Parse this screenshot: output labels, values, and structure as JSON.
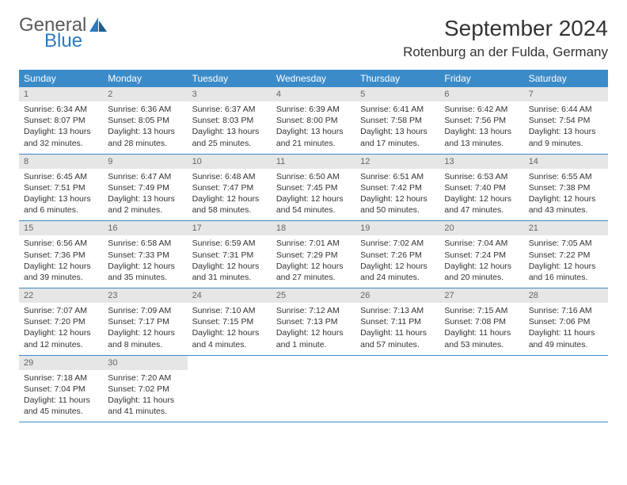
{
  "brand": {
    "line1": "General",
    "line2": "Blue",
    "accent": "#2b7bbf",
    "text_color": "#5a5a5a"
  },
  "title": "September 2024",
  "location": "Rotenburg an der Fulda, Germany",
  "colors": {
    "header_bg": "#3b8bc9",
    "header_fg": "#ffffff",
    "daynum_bg": "#e6e6e6",
    "rule": "#3b8bc9"
  },
  "day_names": [
    "Sunday",
    "Monday",
    "Tuesday",
    "Wednesday",
    "Thursday",
    "Friday",
    "Saturday"
  ],
  "weeks": [
    [
      {
        "n": "1",
        "sunrise": "6:34 AM",
        "sunset": "8:07 PM",
        "daylight": "13 hours and 32 minutes."
      },
      {
        "n": "2",
        "sunrise": "6:36 AM",
        "sunset": "8:05 PM",
        "daylight": "13 hours and 28 minutes."
      },
      {
        "n": "3",
        "sunrise": "6:37 AM",
        "sunset": "8:03 PM",
        "daylight": "13 hours and 25 minutes."
      },
      {
        "n": "4",
        "sunrise": "6:39 AM",
        "sunset": "8:00 PM",
        "daylight": "13 hours and 21 minutes."
      },
      {
        "n": "5",
        "sunrise": "6:41 AM",
        "sunset": "7:58 PM",
        "daylight": "13 hours and 17 minutes."
      },
      {
        "n": "6",
        "sunrise": "6:42 AM",
        "sunset": "7:56 PM",
        "daylight": "13 hours and 13 minutes."
      },
      {
        "n": "7",
        "sunrise": "6:44 AM",
        "sunset": "7:54 PM",
        "daylight": "13 hours and 9 minutes."
      }
    ],
    [
      {
        "n": "8",
        "sunrise": "6:45 AM",
        "sunset": "7:51 PM",
        "daylight": "13 hours and 6 minutes."
      },
      {
        "n": "9",
        "sunrise": "6:47 AM",
        "sunset": "7:49 PM",
        "daylight": "13 hours and 2 minutes."
      },
      {
        "n": "10",
        "sunrise": "6:48 AM",
        "sunset": "7:47 PM",
        "daylight": "12 hours and 58 minutes."
      },
      {
        "n": "11",
        "sunrise": "6:50 AM",
        "sunset": "7:45 PM",
        "daylight": "12 hours and 54 minutes."
      },
      {
        "n": "12",
        "sunrise": "6:51 AM",
        "sunset": "7:42 PM",
        "daylight": "12 hours and 50 minutes."
      },
      {
        "n": "13",
        "sunrise": "6:53 AM",
        "sunset": "7:40 PM",
        "daylight": "12 hours and 47 minutes."
      },
      {
        "n": "14",
        "sunrise": "6:55 AM",
        "sunset": "7:38 PM",
        "daylight": "12 hours and 43 minutes."
      }
    ],
    [
      {
        "n": "15",
        "sunrise": "6:56 AM",
        "sunset": "7:36 PM",
        "daylight": "12 hours and 39 minutes."
      },
      {
        "n": "16",
        "sunrise": "6:58 AM",
        "sunset": "7:33 PM",
        "daylight": "12 hours and 35 minutes."
      },
      {
        "n": "17",
        "sunrise": "6:59 AM",
        "sunset": "7:31 PM",
        "daylight": "12 hours and 31 minutes."
      },
      {
        "n": "18",
        "sunrise": "7:01 AM",
        "sunset": "7:29 PM",
        "daylight": "12 hours and 27 minutes."
      },
      {
        "n": "19",
        "sunrise": "7:02 AM",
        "sunset": "7:26 PM",
        "daylight": "12 hours and 24 minutes."
      },
      {
        "n": "20",
        "sunrise": "7:04 AM",
        "sunset": "7:24 PM",
        "daylight": "12 hours and 20 minutes."
      },
      {
        "n": "21",
        "sunrise": "7:05 AM",
        "sunset": "7:22 PM",
        "daylight": "12 hours and 16 minutes."
      }
    ],
    [
      {
        "n": "22",
        "sunrise": "7:07 AM",
        "sunset": "7:20 PM",
        "daylight": "12 hours and 12 minutes."
      },
      {
        "n": "23",
        "sunrise": "7:09 AM",
        "sunset": "7:17 PM",
        "daylight": "12 hours and 8 minutes."
      },
      {
        "n": "24",
        "sunrise": "7:10 AM",
        "sunset": "7:15 PM",
        "daylight": "12 hours and 4 minutes."
      },
      {
        "n": "25",
        "sunrise": "7:12 AM",
        "sunset": "7:13 PM",
        "daylight": "12 hours and 1 minute."
      },
      {
        "n": "26",
        "sunrise": "7:13 AM",
        "sunset": "7:11 PM",
        "daylight": "11 hours and 57 minutes."
      },
      {
        "n": "27",
        "sunrise": "7:15 AM",
        "sunset": "7:08 PM",
        "daylight": "11 hours and 53 minutes."
      },
      {
        "n": "28",
        "sunrise": "7:16 AM",
        "sunset": "7:06 PM",
        "daylight": "11 hours and 49 minutes."
      }
    ],
    [
      {
        "n": "29",
        "sunrise": "7:18 AM",
        "sunset": "7:04 PM",
        "daylight": "11 hours and 45 minutes."
      },
      {
        "n": "30",
        "sunrise": "7:20 AM",
        "sunset": "7:02 PM",
        "daylight": "11 hours and 41 minutes."
      },
      null,
      null,
      null,
      null,
      null
    ]
  ],
  "labels": {
    "sunrise": "Sunrise:",
    "sunset": "Sunset:",
    "daylight": "Daylight:"
  }
}
